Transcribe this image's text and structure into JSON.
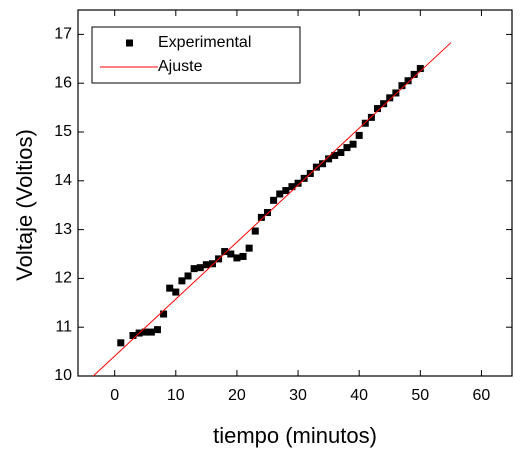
{
  "chart_data": {
    "type": "scatter",
    "xlabel": "tiempo (minutos)",
    "ylabel": "Voltaje (Voltios)",
    "xlim": [
      -6,
      65
    ],
    "ylim": [
      10,
      17.5
    ],
    "xticks": [
      0,
      10,
      20,
      30,
      40,
      50,
      60
    ],
    "yticks": [
      10,
      11,
      12,
      13,
      14,
      15,
      16,
      17
    ],
    "legend": "upper-left",
    "series": [
      {
        "name": "Experimental",
        "color": "#000000",
        "kind": "scatter",
        "x": [
          1,
          3,
          4,
          5,
          6,
          7,
          8,
          9,
          10,
          11,
          12,
          13,
          14,
          15,
          16,
          17,
          18,
          19,
          20,
          21,
          22,
          23,
          24,
          25,
          26,
          27,
          28,
          29,
          30,
          31,
          32,
          33,
          34,
          35,
          36,
          37,
          38,
          39,
          40,
          41,
          42,
          43,
          44,
          45,
          46,
          47,
          48,
          49,
          50
        ],
        "values": [
          10.68,
          10.83,
          10.88,
          10.9,
          10.9,
          10.95,
          11.27,
          11.8,
          11.72,
          11.95,
          12.05,
          12.2,
          12.22,
          12.28,
          12.3,
          12.4,
          12.55,
          12.5,
          12.42,
          12.45,
          12.62,
          12.97,
          13.25,
          13.35,
          13.6,
          13.73,
          13.8,
          13.88,
          13.95,
          14.05,
          14.15,
          14.28,
          14.35,
          14.45,
          14.52,
          14.58,
          14.68,
          14.75,
          14.93,
          15.18,
          15.3,
          15.48,
          15.58,
          15.7,
          15.8,
          15.95,
          16.05,
          16.18,
          16.3
        ]
      },
      {
        "name": "Ajuste",
        "color": "#ff0000",
        "kind": "line",
        "x": [
          -3.5,
          55
        ],
        "values": [
          10,
          16.83
        ]
      }
    ]
  }
}
